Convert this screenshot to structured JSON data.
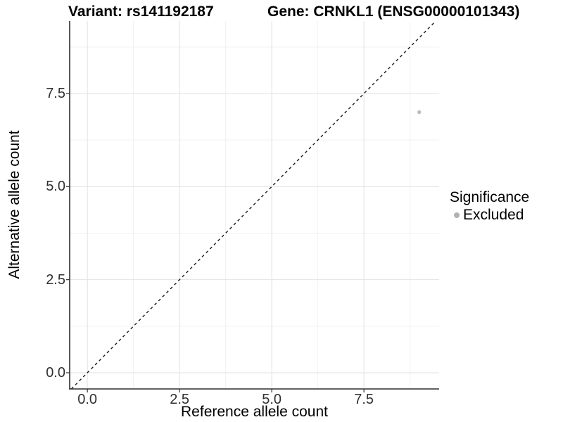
{
  "header": {
    "variant_title": "Variant: rs141192187",
    "gene_title": "Gene: CRNKL1 (ENSG00000101343)"
  },
  "legend": {
    "title": "Significance",
    "items": [
      {
        "label": "Excluded",
        "color": "#b2b2b2"
      }
    ]
  },
  "chart_data": {
    "type": "scatter",
    "title": "Variant: rs141192187 | Gene: CRNKL1 (ENSG00000101343)",
    "xlabel": "Reference allele count",
    "ylabel": "Alternative allele count",
    "xlim": [
      -0.48,
      9.54
    ],
    "ylim": [
      -0.435,
      9.446
    ],
    "x_ticks": {
      "values": [
        0,
        2.5,
        5,
        7.5
      ],
      "labels": [
        "0.0",
        "2.5",
        "5.0",
        "7.5"
      ]
    },
    "y_ticks": {
      "values": [
        0,
        2.5,
        5,
        7.5
      ],
      "labels": [
        "0.0",
        "2.5",
        "5.0",
        "7.5"
      ]
    },
    "x_minor_ticks": [
      1.25,
      3.75,
      6.25,
      8.75
    ],
    "y_minor_ticks": [
      1.25,
      3.75,
      6.25,
      8.75
    ],
    "grid": true,
    "legend_position": "right",
    "series": [
      {
        "name": "Excluded",
        "marker": "circle",
        "color": "#bdbdbd",
        "points": [
          {
            "x": 9,
            "y": 7
          }
        ]
      }
    ],
    "reference_line": {
      "type": "identity y=x",
      "style": "dashed",
      "color": "#1c1c1c"
    }
  },
  "style": {
    "major_grid": "#e2e2e2",
    "minor_grid": "#f0f0f0",
    "axis_line": "#2e2e2e",
    "tick_mark": "#333333",
    "point_color": "#bdbdbd"
  }
}
